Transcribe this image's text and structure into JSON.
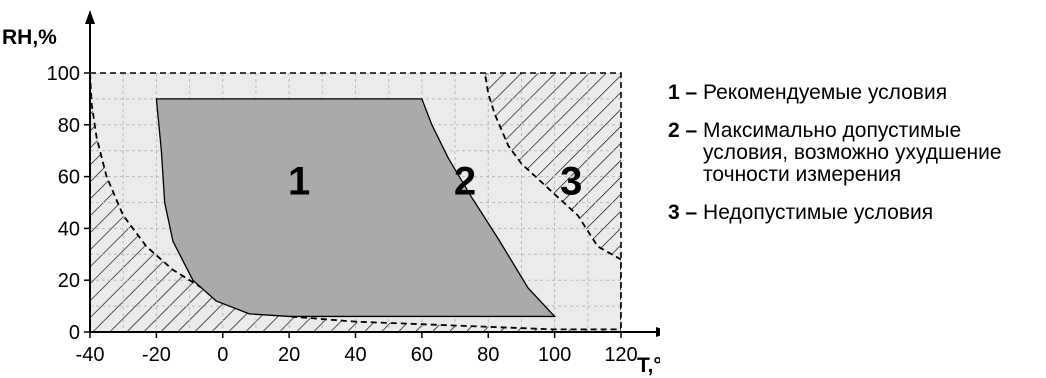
{
  "chart_data": {
    "type": "area",
    "xlabel": "T,°C",
    "ylabel": "RH,%",
    "xlim": [
      -40,
      120
    ],
    "ylim": [
      0,
      100
    ],
    "xticks": [
      -40,
      -20,
      0,
      20,
      40,
      60,
      80,
      100,
      120
    ],
    "yticks": [
      0,
      20,
      40,
      60,
      80,
      100
    ],
    "grid": true,
    "colors": {
      "recommended": "#aaaaaa",
      "max_permissible": "#ebebeb",
      "inadmissible_hatch": "#000000",
      "grid": "#bbbbbb"
    },
    "regions": [
      {
        "id": "1",
        "label": "1",
        "fill": "#aaaaaa",
        "polygon": [
          [
            -20,
            90
          ],
          [
            60,
            90
          ],
          [
            63,
            80
          ],
          [
            68,
            67
          ],
          [
            75,
            52
          ],
          [
            83,
            36
          ],
          [
            92,
            17
          ],
          [
            100,
            6
          ],
          [
            20,
            6
          ],
          [
            8,
            7
          ],
          [
            -2,
            12
          ],
          [
            -9,
            20
          ],
          [
            -15,
            35
          ],
          [
            -17.5,
            50
          ],
          [
            -18.5,
            70
          ],
          [
            -20,
            90
          ]
        ]
      },
      {
        "id": "2",
        "label": "2",
        "boundary": [
          [
            -40,
            100
          ],
          [
            -39.5,
            88
          ],
          [
            -38,
            75
          ],
          [
            -35,
            60
          ],
          [
            -30,
            45
          ],
          [
            -23,
            33
          ],
          [
            -15,
            24
          ],
          [
            -5,
            16
          ],
          [
            8,
            9
          ],
          [
            20,
            6
          ],
          [
            40,
            4
          ],
          [
            80,
            2
          ],
          [
            100,
            1
          ],
          [
            120,
            1
          ],
          [
            120,
            28
          ],
          [
            113,
            33
          ],
          [
            107,
            45
          ],
          [
            101,
            52
          ],
          [
            90,
            65
          ],
          [
            86,
            72
          ],
          [
            82,
            84
          ],
          [
            80,
            92
          ],
          [
            79,
            100
          ]
        ]
      },
      {
        "id": "3",
        "label": "3",
        "hatch": true,
        "description_ref": "legend.items.2"
      }
    ]
  },
  "legend": {
    "items": [
      {
        "num": "1",
        "text": "Рекомендуемые условия"
      },
      {
        "num": "2",
        "text": "Максимально допустимые условия, возможно ухудшение точности измерения"
      },
      {
        "num": "3",
        "text": "Недопустимые условия"
      }
    ],
    "dash": " – "
  }
}
